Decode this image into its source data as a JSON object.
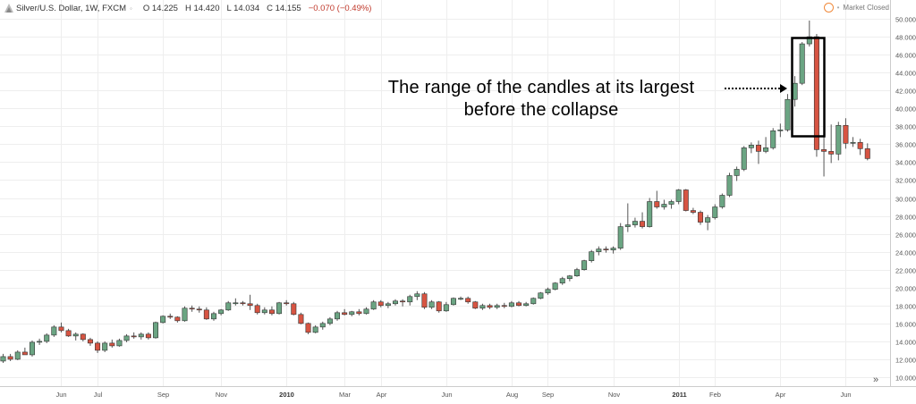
{
  "header": {
    "title": "Silver/U.S. Dollar, 1W, FXCM",
    "open": "O 14.225",
    "high": "H 14.420",
    "low": "L 14.034",
    "close": "C 14.155",
    "change": "−0.070 (−0.49%)",
    "market_status": "Market Closed"
  },
  "annotation": {
    "line1": "The range of the candles at its largest",
    "line2": "before the collapse"
  },
  "nav_icon": "double-chevron-right-icon",
  "colors": {
    "up": "#6ba583",
    "down": "#d75442",
    "grid": "#eeeeee"
  },
  "chart_data": {
    "type": "candlestick",
    "y_range": [
      10,
      50
    ],
    "y_ticks": [
      "10.000",
      "12.000",
      "14.000",
      "16.000",
      "18.000",
      "20.000",
      "22.000",
      "24.000",
      "26.000",
      "28.000",
      "30.000",
      "32.000",
      "34.000",
      "36.000",
      "38.000",
      "40.000",
      "42.000",
      "44.000",
      "46.000",
      "48.000",
      "50.000"
    ],
    "x_labels": [
      {
        "label": "Jun",
        "i": 8,
        "bold": false
      },
      {
        "label": "Jul",
        "i": 13,
        "bold": false
      },
      {
        "label": "Sep",
        "i": 22,
        "bold": false
      },
      {
        "label": "Nov",
        "i": 30,
        "bold": false
      },
      {
        "label": "2010",
        "i": 39,
        "bold": true
      },
      {
        "label": "Mar",
        "i": 47,
        "bold": false
      },
      {
        "label": "Apr",
        "i": 52,
        "bold": false
      },
      {
        "label": "Jun",
        "i": 61,
        "bold": false
      },
      {
        "label": "Aug",
        "i": 70,
        "bold": false
      },
      {
        "label": "Sep",
        "i": 75,
        "bold": false
      },
      {
        "label": "Nov",
        "i": 84,
        "bold": false
      },
      {
        "label": "2011",
        "i": 93,
        "bold": true
      },
      {
        "label": "Feb",
        "i": 98,
        "bold": false
      },
      {
        "label": "Apr",
        "i": 107,
        "bold": false
      },
      {
        "label": "Jun",
        "i": 116,
        "bold": false
      }
    ],
    "candles": [
      [
        11.8,
        12.6,
        11.6,
        12.3
      ],
      [
        12.3,
        12.6,
        11.8,
        12.0
      ],
      [
        12.0,
        13.0,
        11.9,
        12.8
      ],
      [
        12.8,
        13.3,
        12.5,
        12.5
      ],
      [
        12.5,
        14.1,
        12.3,
        13.9
      ],
      [
        13.9,
        14.3,
        13.6,
        14.0
      ],
      [
        14.0,
        14.9,
        13.8,
        14.7
      ],
      [
        14.7,
        15.8,
        14.5,
        15.6
      ],
      [
        15.6,
        16.1,
        15.0,
        15.2
      ],
      [
        15.2,
        15.4,
        14.5,
        14.6
      ],
      [
        14.6,
        15.0,
        14.1,
        14.8
      ],
      [
        14.8,
        14.9,
        14.0,
        14.2
      ],
      [
        14.2,
        14.4,
        13.5,
        13.8
      ],
      [
        13.8,
        14.0,
        12.7,
        13.0
      ],
      [
        13.0,
        14.0,
        12.8,
        13.8
      ],
      [
        13.8,
        14.2,
        13.3,
        13.5
      ],
      [
        13.5,
        14.3,
        13.4,
        14.1
      ],
      [
        14.1,
        14.8,
        13.9,
        14.6
      ],
      [
        14.6,
        15.0,
        14.3,
        14.5
      ],
      [
        14.5,
        15.0,
        14.2,
        14.8
      ],
      [
        14.8,
        15.0,
        14.2,
        14.4
      ],
      [
        14.4,
        16.2,
        14.3,
        16.1
      ],
      [
        16.1,
        16.9,
        16.0,
        16.8
      ],
      [
        16.8,
        17.1,
        16.5,
        16.7
      ],
      [
        16.7,
        16.8,
        16.1,
        16.3
      ],
      [
        16.3,
        17.9,
        16.2,
        17.7
      ],
      [
        17.7,
        18.0,
        17.3,
        17.6
      ],
      [
        17.6,
        17.9,
        17.2,
        17.5
      ],
      [
        17.5,
        17.8,
        16.4,
        16.5
      ],
      [
        16.5,
        17.3,
        16.3,
        17.1
      ],
      [
        17.1,
        17.6,
        16.9,
        17.5
      ],
      [
        17.5,
        18.5,
        17.4,
        18.3
      ],
      [
        18.3,
        18.8,
        18.0,
        18.3
      ],
      [
        18.3,
        18.5,
        18.0,
        18.2
      ],
      [
        18.2,
        19.2,
        17.5,
        18.0
      ],
      [
        18.0,
        18.2,
        17.0,
        17.2
      ],
      [
        17.2,
        17.8,
        17.0,
        17.5
      ],
      [
        17.5,
        17.9,
        16.9,
        17.1
      ],
      [
        17.1,
        18.4,
        17.0,
        18.3
      ],
      [
        18.3,
        18.6,
        18.0,
        18.2
      ],
      [
        18.2,
        18.4,
        16.9,
        17.0
      ],
      [
        17.0,
        17.2,
        15.9,
        16.0
      ],
      [
        16.0,
        16.1,
        14.8,
        15.0
      ],
      [
        15.0,
        15.8,
        14.9,
        15.6
      ],
      [
        15.6,
        16.2,
        15.3,
        16.0
      ],
      [
        16.0,
        16.7,
        15.8,
        16.5
      ],
      [
        16.5,
        17.4,
        16.3,
        17.2
      ],
      [
        17.2,
        17.6,
        16.9,
        17.0
      ],
      [
        17.0,
        17.4,
        16.8,
        17.3
      ],
      [
        17.3,
        17.6,
        16.9,
        17.1
      ],
      [
        17.1,
        17.8,
        17.0,
        17.6
      ],
      [
        17.6,
        18.6,
        17.5,
        18.4
      ],
      [
        18.4,
        18.6,
        17.8,
        18.0
      ],
      [
        18.0,
        18.4,
        17.7,
        18.2
      ],
      [
        18.2,
        18.7,
        18.0,
        18.5
      ],
      [
        18.5,
        18.7,
        17.9,
        18.4
      ],
      [
        18.4,
        19.2,
        18.0,
        19.0
      ],
      [
        19.0,
        19.6,
        18.6,
        19.3
      ],
      [
        19.3,
        19.5,
        17.6,
        17.8
      ],
      [
        17.8,
        18.6,
        17.6,
        18.4
      ],
      [
        18.4,
        18.5,
        17.2,
        17.4
      ],
      [
        17.4,
        18.4,
        17.3,
        18.1
      ],
      [
        18.1,
        18.9,
        18.0,
        18.8
      ],
      [
        18.8,
        19.0,
        18.6,
        18.8
      ],
      [
        18.8,
        19.0,
        18.2,
        18.4
      ],
      [
        18.4,
        18.5,
        17.6,
        17.7
      ],
      [
        17.7,
        18.2,
        17.5,
        18.0
      ],
      [
        18.0,
        18.2,
        17.6,
        17.8
      ],
      [
        17.8,
        18.2,
        17.6,
        18.0
      ],
      [
        18.0,
        18.3,
        17.7,
        17.9
      ],
      [
        17.9,
        18.5,
        17.8,
        18.3
      ],
      [
        18.3,
        18.5,
        17.9,
        18.0
      ],
      [
        18.0,
        18.4,
        17.9,
        18.2
      ],
      [
        18.2,
        18.9,
        18.1,
        18.8
      ],
      [
        18.8,
        19.5,
        18.7,
        19.4
      ],
      [
        19.4,
        20.0,
        19.2,
        19.8
      ],
      [
        19.8,
        20.6,
        19.7,
        20.5
      ],
      [
        20.5,
        21.2,
        20.3,
        21.0
      ],
      [
        21.0,
        21.4,
        20.7,
        21.3
      ],
      [
        21.3,
        22.2,
        21.2,
        22.0
      ],
      [
        22.0,
        23.1,
        21.9,
        23.0
      ],
      [
        23.0,
        24.2,
        22.8,
        24.0
      ],
      [
        24.0,
        24.6,
        23.6,
        24.3
      ],
      [
        24.3,
        24.6,
        23.9,
        24.2
      ],
      [
        24.2,
        24.6,
        23.8,
        24.4
      ],
      [
        24.4,
        27.2,
        24.2,
        26.8
      ],
      [
        26.8,
        29.4,
        26.2,
        27.0
      ],
      [
        27.0,
        27.8,
        26.7,
        27.4
      ],
      [
        27.4,
        28.4,
        26.6,
        26.8
      ],
      [
        26.8,
        30.0,
        26.7,
        29.6
      ],
      [
        29.6,
        30.8,
        28.8,
        29.0
      ],
      [
        29.0,
        29.8,
        28.7,
        29.3
      ],
      [
        29.3,
        29.8,
        28.8,
        29.6
      ],
      [
        29.6,
        31.0,
        29.3,
        30.9
      ],
      [
        30.9,
        31.0,
        28.5,
        28.6
      ],
      [
        28.6,
        28.9,
        28.2,
        28.4
      ],
      [
        28.4,
        28.6,
        27.0,
        27.3
      ],
      [
        27.3,
        28.1,
        26.4,
        27.8
      ],
      [
        27.8,
        29.3,
        27.6,
        29.0
      ],
      [
        29.0,
        30.5,
        28.8,
        30.3
      ],
      [
        30.3,
        32.8,
        30.1,
        32.5
      ],
      [
        32.5,
        33.5,
        31.9,
        33.2
      ],
      [
        33.2,
        35.8,
        33.0,
        35.6
      ],
      [
        35.6,
        36.2,
        35.0,
        35.9
      ],
      [
        35.9,
        36.4,
        33.8,
        35.2
      ],
      [
        35.2,
        36.8,
        35.0,
        35.6
      ],
      [
        35.6,
        37.8,
        35.4,
        37.5
      ],
      [
        37.5,
        38.3,
        36.8,
        37.6
      ],
      [
        37.6,
        41.6,
        37.4,
        41.0
      ],
      [
        41.0,
        43.6,
        40.2,
        42.8
      ],
      [
        42.8,
        47.4,
        42.6,
        47.2
      ],
      [
        47.2,
        49.8,
        46.9,
        48.0
      ],
      [
        48.0,
        48.3,
        34.6,
        35.4
      ],
      [
        35.4,
        39.6,
        32.4,
        35.2
      ],
      [
        35.2,
        38.2,
        33.9,
        34.9
      ],
      [
        34.9,
        38.5,
        34.2,
        38.1
      ],
      [
        38.1,
        38.9,
        35.5,
        36.1
      ],
      [
        36.1,
        36.8,
        35.7,
        36.2
      ],
      [
        36.2,
        36.6,
        34.8,
        35.5
      ],
      [
        35.5,
        36.1,
        34.2,
        34.4
      ]
    ]
  }
}
